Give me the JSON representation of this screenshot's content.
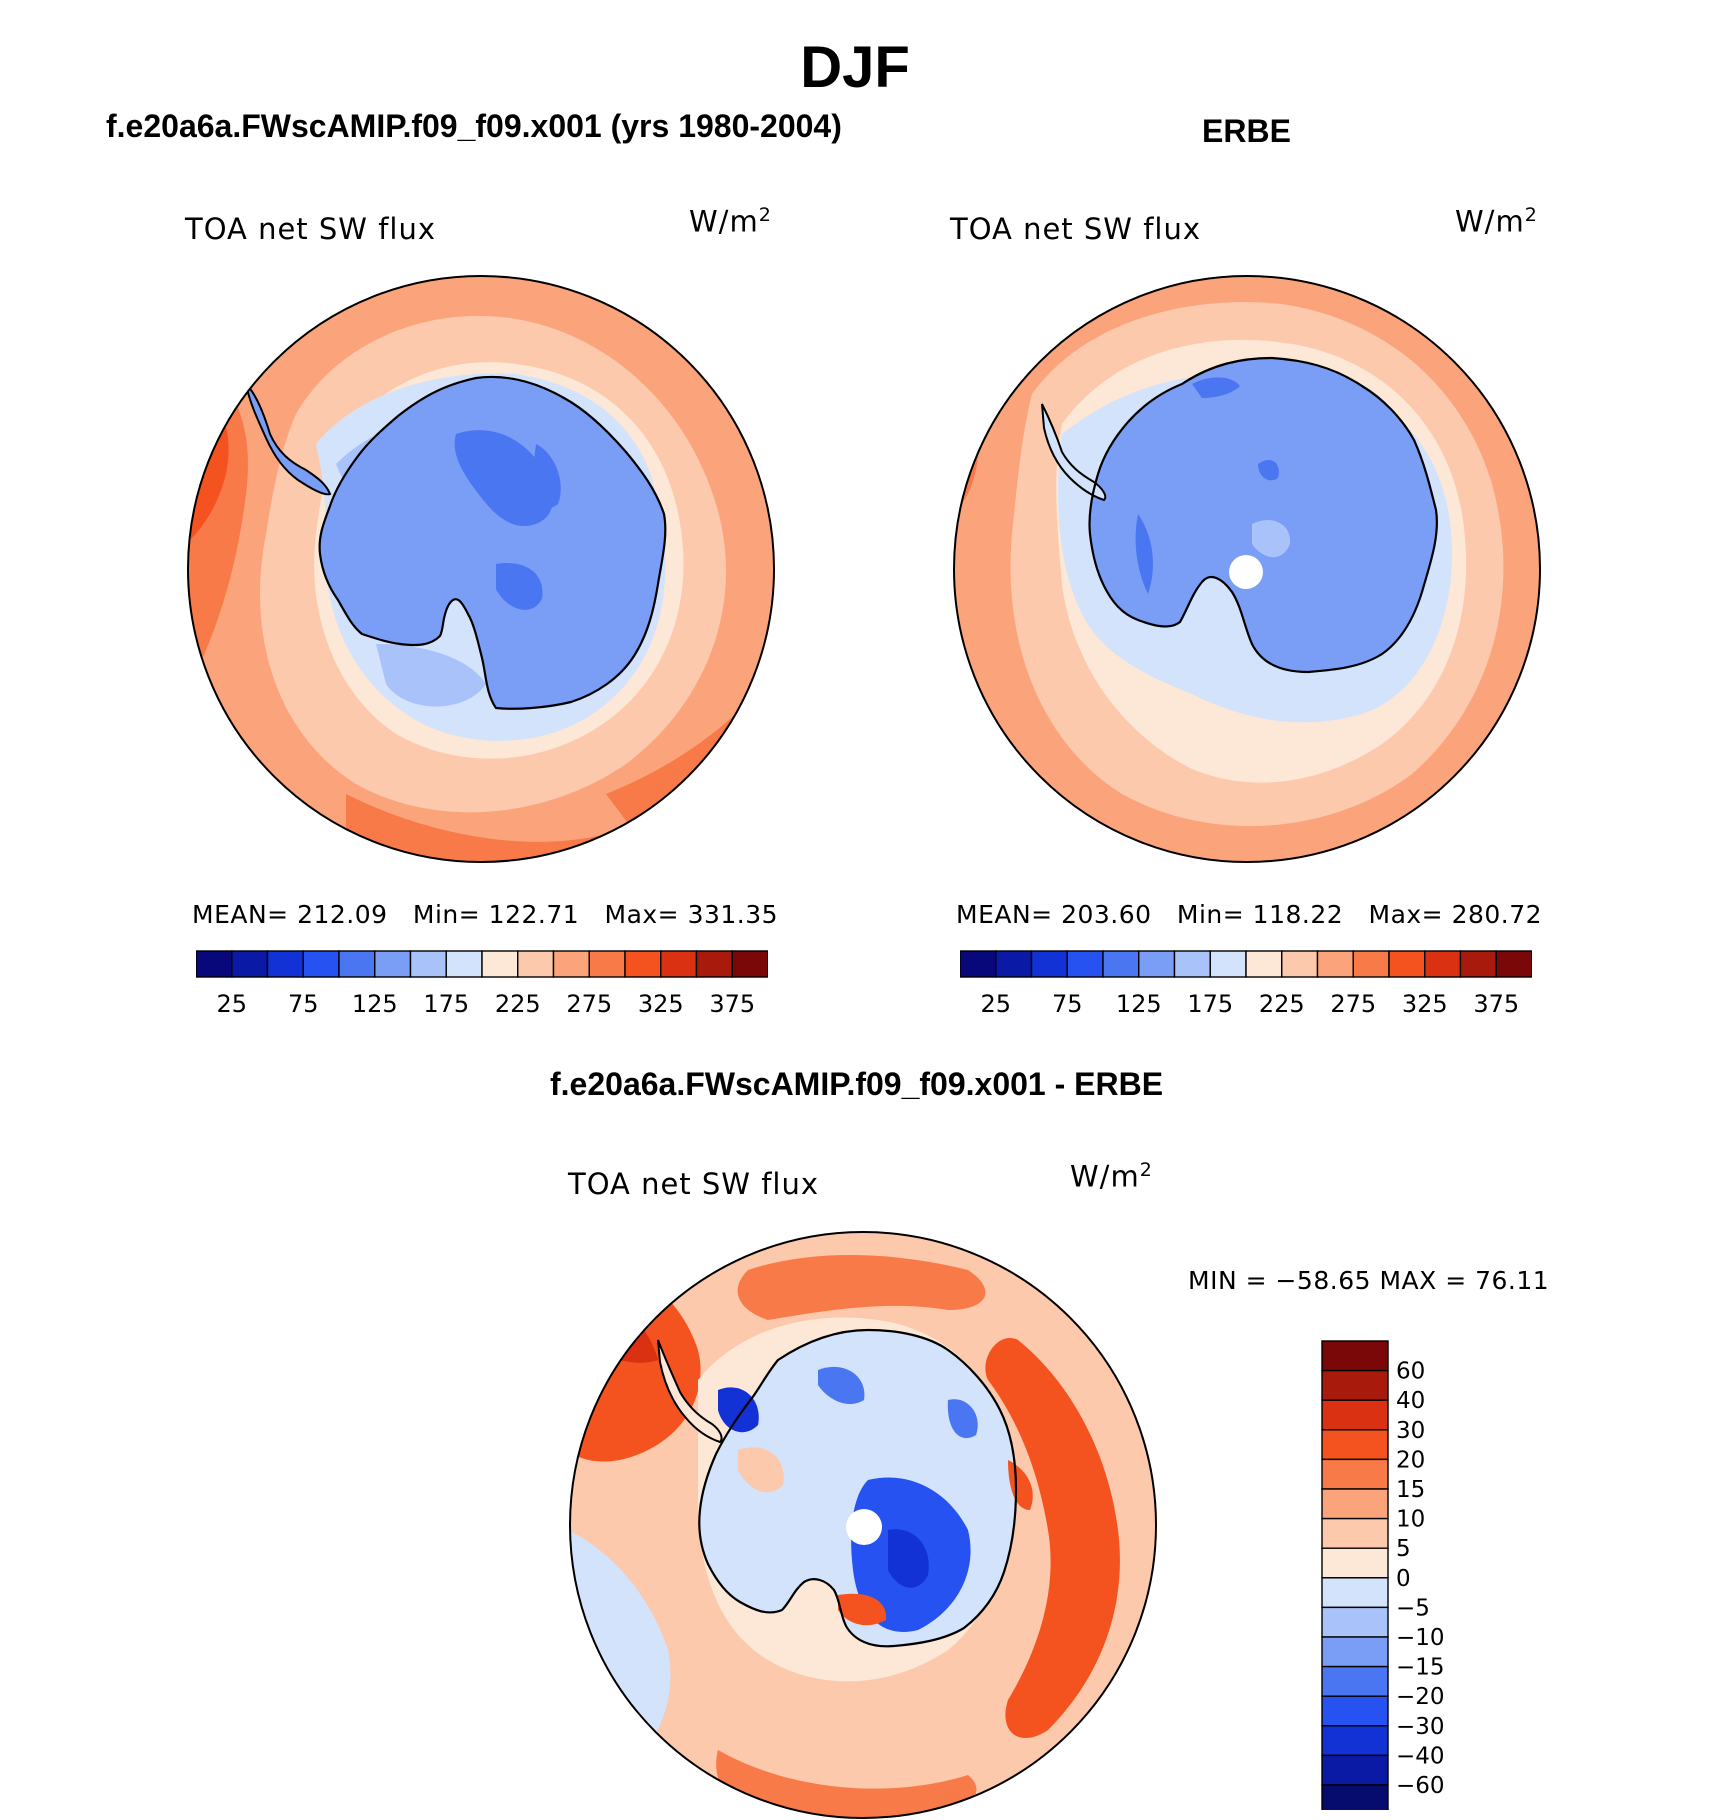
{
  "figure_title": "DJF",
  "colors": {
    "abs_palette": [
      "#08087a",
      "#0b1aa6",
      "#1232d6",
      "#2552f0",
      "#4a76f2",
      "#7a9df5",
      "#aac2fa",
      "#d3e3fb",
      "#fde7d6",
      "#fcc9ac",
      "#fba47c",
      "#f87a48",
      "#f4531f",
      "#d93112",
      "#a81b0c",
      "#7a0808"
    ],
    "diff_palette": [
      "#060c6e",
      "#0a1aa4",
      "#1232d6",
      "#2552f0",
      "#4a76f2",
      "#7a9df5",
      "#aac2fa",
      "#d3e3fb",
      "#fde7d6",
      "#fcc9ac",
      "#fba47c",
      "#f87a48",
      "#f4531f",
      "#d93112",
      "#a81b0c",
      "#7a0808"
    ],
    "land_fill": "#7a9df5",
    "land_deep": "#4a76f2",
    "ocean_outer": "#fba47c",
    "ocean_mid": "#fcc9ac",
    "ocean_inner": "#fde7d6"
  },
  "chart_data": [
    {
      "type": "heatmap",
      "projection": "south-polar-stereographic",
      "title": "f.e20a6a.FWscAMIP.f09_f09.x001 (yrs 1980-2004)",
      "variable": "TOA net SW flux",
      "units": "W/m",
      "units_exp": "2",
      "stats": {
        "mean_label": "MEAN=",
        "mean": "212.09",
        "min_label": "Min=",
        "min": "122.71",
        "max_label": "Max=",
        "max": "331.35"
      },
      "colorbar": {
        "orientation": "horizontal",
        "levels": 16,
        "tick_labels": [
          "25",
          "75",
          "125",
          "175",
          "225",
          "275",
          "325",
          "375"
        ]
      }
    },
    {
      "type": "heatmap",
      "projection": "south-polar-stereographic",
      "title": "ERBE",
      "variable": "TOA net SW flux",
      "units": "W/m",
      "units_exp": "2",
      "stats": {
        "mean_label": "MEAN=",
        "mean": "203.60",
        "min_label": "Min=",
        "min": "118.22",
        "max_label": "Max=",
        "max": "280.72"
      },
      "colorbar": {
        "orientation": "horizontal",
        "levels": 16,
        "tick_labels": [
          "25",
          "75",
          "125",
          "175",
          "225",
          "275",
          "325",
          "375"
        ]
      }
    },
    {
      "type": "heatmap",
      "projection": "south-polar-stereographic",
      "title": "f.e20a6a.FWscAMIP.f09_f09.x001 - ERBE",
      "variable": "TOA net SW flux",
      "units": "W/m",
      "units_exp": "2",
      "stats_text": "MIN = −58.65 MAX =  76.11",
      "colorbar": {
        "orientation": "vertical",
        "levels": 16,
        "tick_labels": [
          "60",
          "40",
          "30",
          "20",
          "15",
          "10",
          "5",
          "0",
          "−5",
          "−10",
          "−15",
          "−20",
          "−30",
          "−40",
          "−60"
        ]
      }
    }
  ]
}
